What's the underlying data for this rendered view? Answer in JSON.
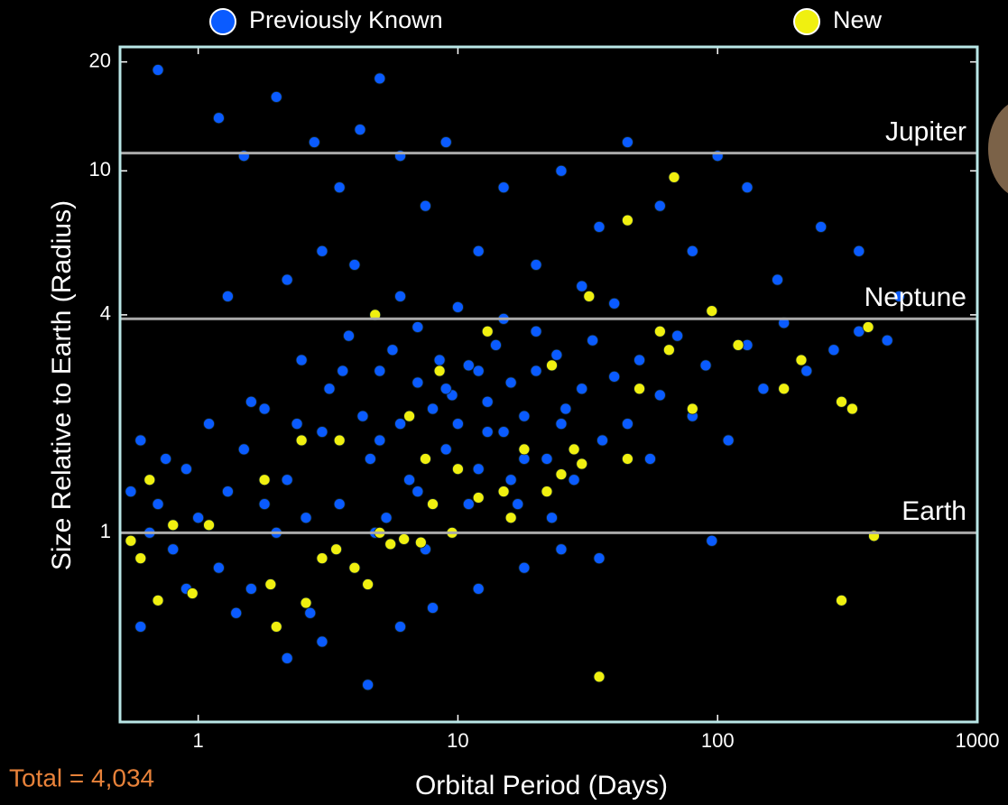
{
  "chart_data": {
    "type": "scatter",
    "xlabel": "Orbital Period (Days)",
    "ylabel": "Size Relative to Earth (Radius)",
    "annotation": "Total = 4,034",
    "xscale": "log",
    "yscale": "log",
    "xlim": [
      0.5,
      1000
    ],
    "ylim": [
      0.3,
      22
    ],
    "xticks": [
      1,
      10,
      100,
      1000
    ],
    "yticks": [
      1,
      4,
      10,
      20
    ],
    "frame_color": "#b9e6e6",
    "reference_lines": [
      {
        "label": "Jupiter",
        "value": 11.2
      },
      {
        "label": "Neptune",
        "value": 3.9
      },
      {
        "label": "Earth",
        "value": 1
      }
    ],
    "series": [
      {
        "name": "Previously Known",
        "color": "#0a5bff",
        "x": [
          0.6,
          0.7,
          0.8,
          0.9,
          1.0,
          1.1,
          1.2,
          1.3,
          1.5,
          1.6,
          1.8,
          2.0,
          2.2,
          2.5,
          2.7,
          3.0,
          3.2,
          3.5,
          3.8,
          4.0,
          4.3,
          4.6,
          5.0,
          5.3,
          5.6,
          6.0,
          6.5,
          7.0,
          7.5,
          8.0,
          8.5,
          9.0,
          9.5,
          10,
          11,
          12,
          13,
          14,
          15,
          16,
          17,
          18,
          20,
          22,
          24,
          26,
          28,
          30,
          33,
          36,
          40,
          45,
          50,
          55,
          60,
          70,
          80,
          90,
          110,
          130,
          150,
          180,
          220,
          280,
          350,
          450,
          0.7,
          1.2,
          1.5,
          2.0,
          2.8,
          3.5,
          4.2,
          5.0,
          6.0,
          7.5,
          9,
          12,
          15,
          20,
          25,
          35,
          45,
          60,
          80,
          100,
          130,
          170,
          250,
          350,
          500,
          3,
          2.2,
          1.3,
          0.6,
          0.9,
          1.4,
          2.2,
          3.0,
          4.5,
          6,
          8,
          12,
          18,
          25,
          35,
          95,
          0.55,
          0.65,
          1.8,
          2.6,
          4.8,
          7,
          11,
          16,
          23,
          13,
          9,
          20,
          6,
          4,
          10,
          30,
          15,
          40,
          25,
          18,
          12,
          7,
          5,
          3.6,
          2.4,
          1.6,
          0.75
        ],
        "values": [
          1.8,
          1.2,
          0.9,
          1.5,
          1.1,
          2.0,
          0.8,
          1.3,
          1.7,
          0.7,
          2.2,
          1.0,
          1.4,
          3.0,
          0.6,
          1.9,
          2.5,
          1.2,
          3.5,
          0.8,
          2.1,
          1.6,
          2.8,
          1.1,
          3.2,
          2.0,
          1.4,
          2.6,
          0.9,
          2.2,
          3.0,
          1.7,
          2.4,
          2.0,
          2.9,
          1.5,
          2.3,
          3.3,
          1.9,
          2.6,
          1.2,
          2.1,
          2.8,
          1.6,
          3.1,
          2.2,
          1.4,
          2.5,
          3.4,
          1.8,
          2.7,
          2.0,
          3.0,
          1.6,
          2.4,
          3.5,
          2.1,
          2.9,
          1.8,
          3.3,
          2.5,
          3.8,
          2.8,
          3.2,
          3.6,
          3.4,
          19,
          14,
          11,
          16,
          12,
          9,
          13,
          18,
          11,
          8,
          12,
          6,
          9,
          5.5,
          10,
          7,
          12,
          8,
          6,
          11,
          9,
          5,
          7,
          6,
          4.5,
          6,
          5,
          4.5,
          0.55,
          0.7,
          0.6,
          0.45,
          0.5,
          0.38,
          0.55,
          0.62,
          0.7,
          0.8,
          0.9,
          0.85,
          0.95,
          1.3,
          1.0,
          1.2,
          1.1,
          1.0,
          1.3,
          1.2,
          1.4,
          1.1,
          1.9,
          2.5,
          3.6,
          4.5,
          5.5,
          4.2,
          4.8,
          3.9,
          4.3,
          2.0,
          1.6,
          2.8,
          3.7,
          1.8,
          2.8,
          2.0,
          2.3,
          1.6
        ]
      },
      {
        "name": "New",
        "color": "#f0f010",
        "x": [
          0.55,
          0.6,
          0.7,
          0.8,
          0.95,
          1.1,
          1.9,
          2.0,
          2.6,
          3.0,
          3.4,
          4.0,
          4.5,
          5.0,
          5.5,
          6.2,
          7.2,
          8,
          9.5,
          12,
          16,
          22,
          25,
          30,
          35,
          45,
          50,
          65,
          68,
          60,
          80,
          95,
          120,
          180,
          210,
          300,
          330,
          380,
          400,
          300,
          8.5,
          6.5,
          4.8,
          32,
          45,
          13,
          23,
          2.5,
          1.8,
          3.5,
          7.5,
          10,
          15,
          18,
          28,
          0.65
        ],
        "values": [
          0.95,
          0.85,
          0.65,
          1.05,
          0.68,
          1.05,
          0.72,
          0.55,
          0.64,
          0.85,
          0.9,
          0.8,
          0.72,
          1.0,
          0.93,
          0.96,
          0.94,
          1.2,
          1.0,
          1.25,
          1.1,
          1.3,
          1.45,
          1.55,
          0.4,
          1.6,
          2.5,
          3.2,
          9.6,
          3.6,
          2.2,
          4.1,
          3.3,
          2.5,
          3.0,
          2.3,
          2.2,
          3.7,
          0.98,
          0.65,
          2.8,
          2.1,
          4.0,
          4.5,
          7.3,
          3.6,
          2.9,
          1.8,
          1.4,
          1.8,
          1.6,
          1.5,
          1.3,
          1.7,
          1.7,
          1.4
        ]
      }
    ]
  }
}
